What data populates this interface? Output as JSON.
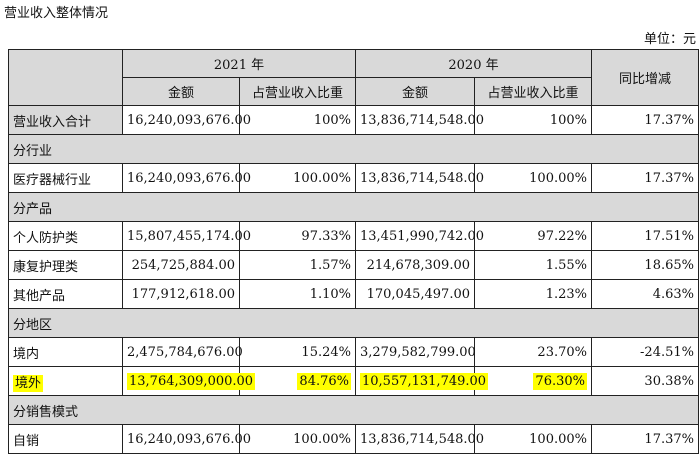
{
  "title": "营业收入整体情况",
  "unit": "单位：元",
  "header": {
    "year1": "2021 年",
    "year2": "2020 年",
    "yoy": "同比增减",
    "amount": "金额",
    "ratio": "占营业收入比重"
  },
  "rows": [
    {
      "label": "营业收入合计",
      "a21": "16,240,093,676.00",
      "r21": "100%",
      "a20": "13,836,714,548.00",
      "r20": "100%",
      "yoy": "17.37%"
    },
    {
      "section": "分行业"
    },
    {
      "label": "医疗器械行业",
      "a21": "16,240,093,676.00",
      "r21": "100.00%",
      "a20": "13,836,714,548.00",
      "r20": "100.00%",
      "yoy": "17.37%"
    },
    {
      "section": "分产品"
    },
    {
      "label": "个人防护类",
      "a21": "15,807,455,174.00",
      "r21": "97.33%",
      "a20": "13,451,990,742.00",
      "r20": "97.22%",
      "yoy": "17.51%"
    },
    {
      "label": "康复护理类",
      "a21": "254,725,884.00",
      "r21": "1.57%",
      "a20": "214,678,309.00",
      "r20": "1.55%",
      "yoy": "18.65%"
    },
    {
      "label": "其他产品",
      "a21": "177,912,618.00",
      "r21": "1.10%",
      "a20": "170,045,497.00",
      "r20": "1.23%",
      "yoy": "4.63%"
    },
    {
      "section": "分地区"
    },
    {
      "label": "境内",
      "a21": "2,475,784,676.00",
      "r21": "15.24%",
      "a20": "3,279,582,799.00",
      "r20": "23.70%",
      "yoy": "-24.51%"
    },
    {
      "label": "境外",
      "a21": "13,764,309,000.00",
      "r21": "84.76%",
      "a20": "10,557,131,749.00",
      "r20": "76.30%",
      "yoy": "30.38%",
      "highlight": true
    },
    {
      "section": "分销售模式"
    },
    {
      "label": "自销",
      "a21": "16,240,093,676.00",
      "r21": "100.00%",
      "a20": "13,836,714,548.00",
      "r20": "100.00%",
      "yoy": "17.37%"
    }
  ],
  "highlight_color": "#ffff00"
}
